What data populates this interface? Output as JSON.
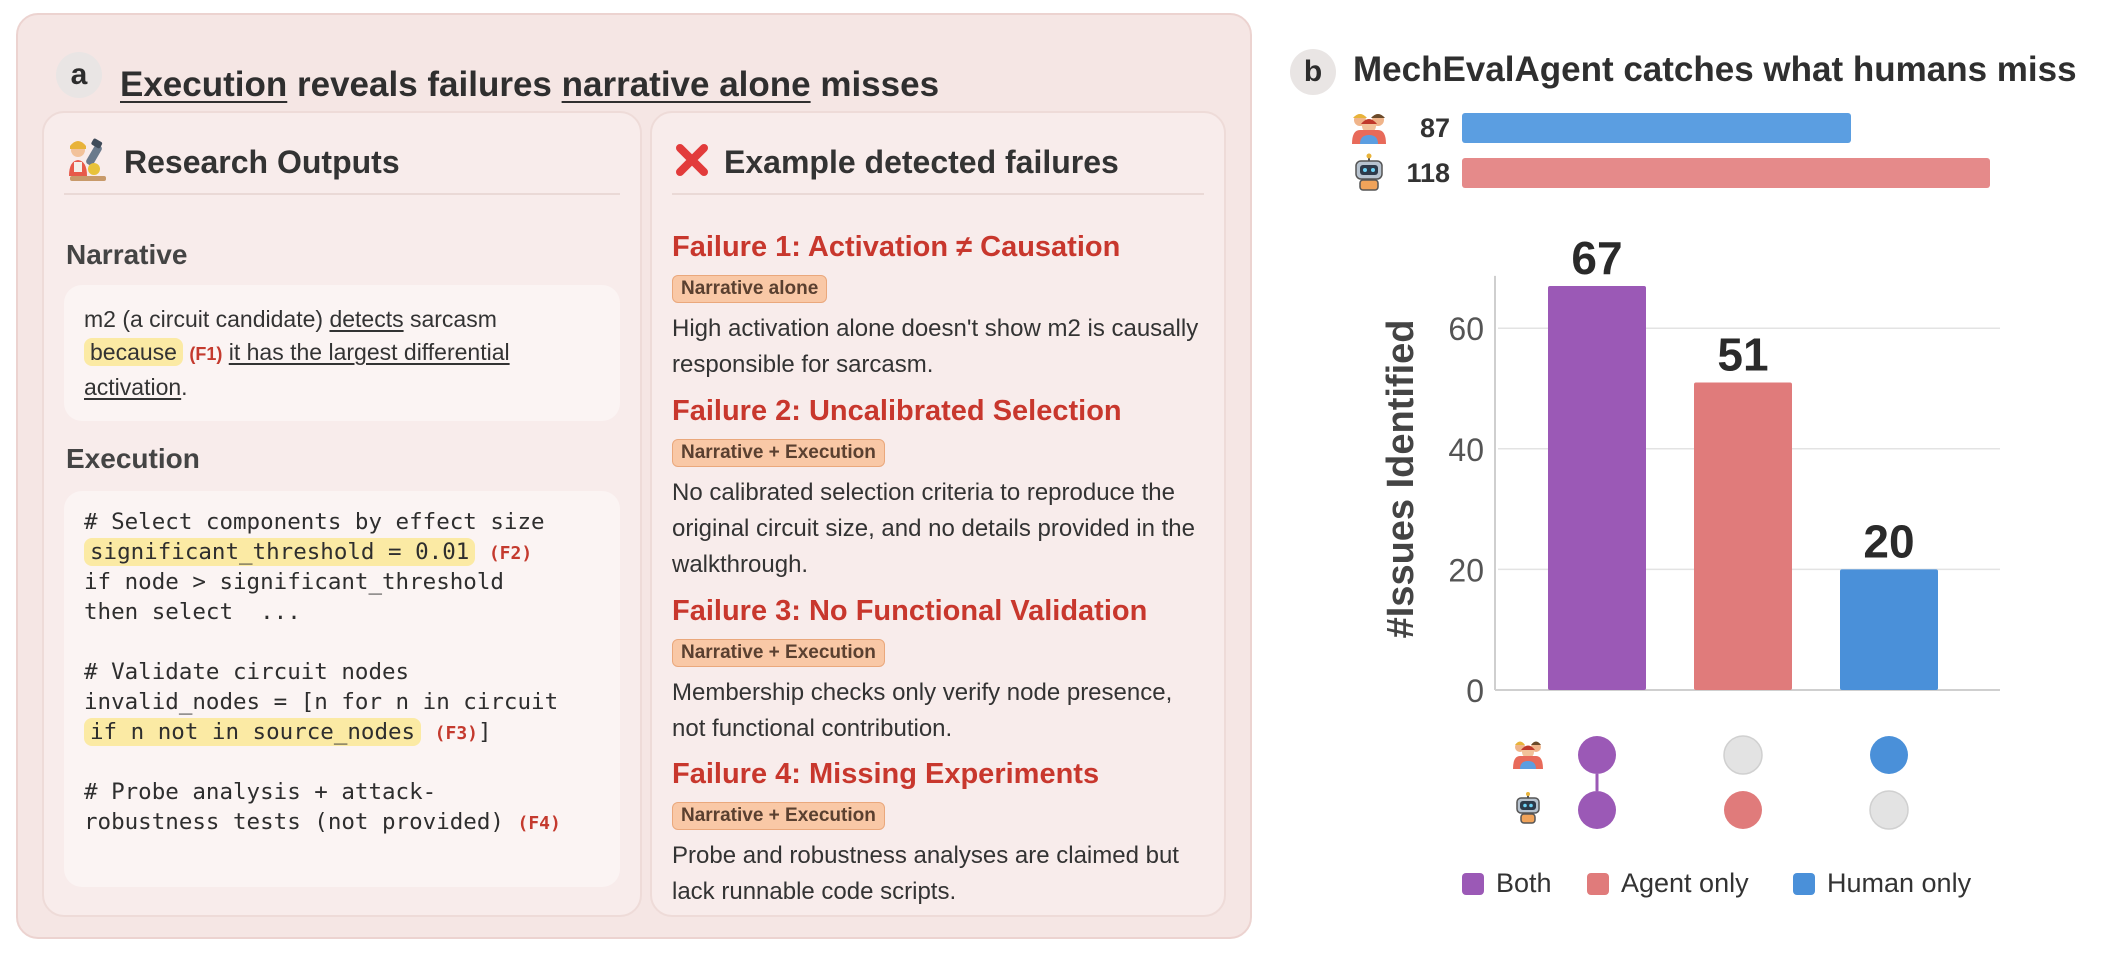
{
  "panel_a": {
    "letter": "a",
    "title_parts": [
      "Execution",
      " reveals failures ",
      "narrative alone",
      " misses"
    ],
    "outputs": {
      "title": "Research Outputs",
      "narrative_label": "Narrative",
      "narrative": {
        "p1": "m2 (a circuit candidate) ",
        "p2": "detects",
        "p3": " sarcasm",
        "highlight": "because",
        "ref": "(F1)",
        "p4": "it has the largest differential activation",
        "p5": "."
      },
      "execution_label": "Execution",
      "code": {
        "l1": "# Select components by effect size",
        "l2": "significant_threshold = 0.01",
        "l2_ref": "(F2)",
        "l3": "if node > significant_threshold",
        "l4": "then select  ...",
        "l6": "# Validate circuit nodes",
        "l7": "invalid_nodes = [n for n in circuit",
        "l8": "if n not in source_nodes",
        "l8_ref": "(F3)",
        "l8_end": "]",
        "l10": "# Probe analysis + attack-",
        "l11": "robustness tests (not provided)",
        "l11_ref": "(F4)"
      }
    },
    "failures": {
      "title": "Example detected failures",
      "items": [
        {
          "title": "Failure 1: Activation ≠ Causation",
          "tag": "Narrative alone",
          "desc": "High activation alone doesn't show m2 is causally responsible for sarcasm."
        },
        {
          "title": "Failure 2: Uncalibrated Selection",
          "tag": "Narrative + Execution",
          "desc": "No calibrated selection criteria to reproduce the original circuit size, and no details provided in the walkthrough."
        },
        {
          "title": "Failure 3: No Functional Validation",
          "tag": "Narrative + Execution",
          "desc": "Membership checks only verify node presence, not functional contribution."
        },
        {
          "title": "Failure 4: Missing Experiments",
          "tag": "Narrative + Execution",
          "desc": "Probe and robustness analyses are claimed but lack runnable code scripts."
        }
      ]
    }
  },
  "panel_b": {
    "letter": "b",
    "title": "MechEvalAgent catches what humans miss",
    "totals": [
      {
        "who": "human",
        "value": 87,
        "color": "#5b9ee1"
      },
      {
        "who": "agent",
        "value": 118,
        "color": "#e58a8a"
      }
    ]
  },
  "chart_data": {
    "type": "bar",
    "categories": [
      "Both",
      "Agent only",
      "Human only"
    ],
    "values": [
      67,
      51,
      20
    ],
    "colors": [
      "#9b59b6",
      "#e07b7b",
      "#4a90d9"
    ],
    "ylabel": "#Issues Identified",
    "ylim": [
      0,
      70
    ],
    "yticks": [
      0,
      20,
      40,
      60
    ],
    "grid": true,
    "legend": [
      "Both",
      "Agent only",
      "Human only"
    ],
    "legend_position": "bottom",
    "matrix": {
      "rows": [
        "human",
        "agent"
      ],
      "cells": [
        [
          true,
          true
        ],
        [
          false,
          true
        ],
        [
          true,
          false
        ]
      ]
    },
    "totals_scale_max": 118
  }
}
